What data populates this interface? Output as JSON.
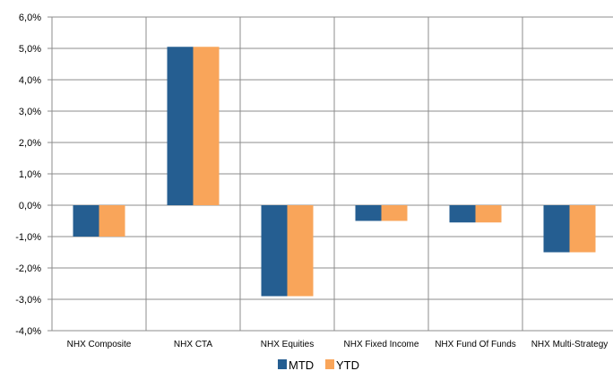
{
  "chart_data": {
    "type": "bar",
    "categories": [
      "NHX Composite",
      "NHX CTA",
      "NHX Equities",
      "NHX Fixed Income",
      "NHX Fund Of Funds",
      "NHX Multi-Strategy"
    ],
    "series": [
      {
        "name": "MTD",
        "color": "#255E91",
        "values": [
          -1.0,
          5.05,
          -2.9,
          -0.5,
          -0.55,
          -1.5
        ]
      },
      {
        "name": "YTD",
        "color": "#F9A55A",
        "values": [
          -1.0,
          5.05,
          -2.9,
          -0.5,
          -0.55,
          -1.5
        ]
      }
    ],
    "ylim": [
      -4.0,
      6.0
    ],
    "yticks": [
      6,
      5,
      4,
      3,
      2,
      1,
      0,
      -1,
      -2,
      -3,
      -4
    ],
    "ytick_labels": [
      "6,0%",
      "5,0%",
      "4,0%",
      "3,0%",
      "2,0%",
      "1,0%",
      "0,0%",
      "-1,0%",
      "-2,0%",
      "-3,0%",
      "-4,0%"
    ],
    "grid": true,
    "legend_position": "bottom"
  }
}
